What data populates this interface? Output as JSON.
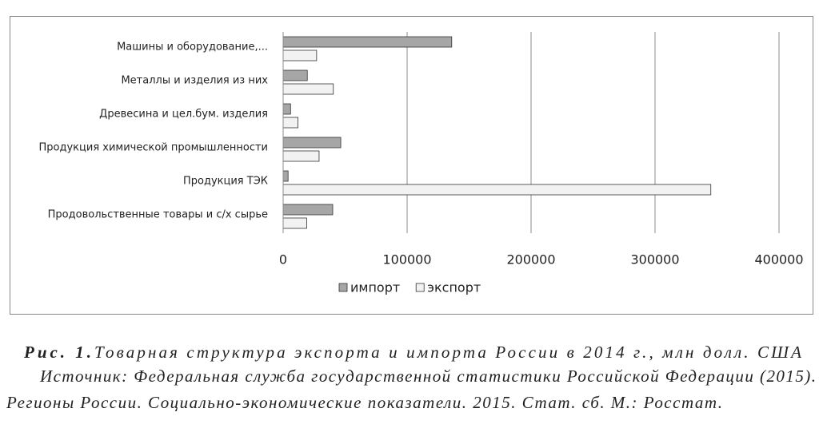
{
  "chart_data": {
    "type": "hbar",
    "categories": [
      "Машины и оборудование,...",
      "Металлы и изделия из них",
      "Древесина и цел.бум. изделия",
      "Продукция химической промышленности",
      "Продукция ТЭК",
      "Продовольственные товары и с/х сырье"
    ],
    "series": [
      {
        "name": "импорт",
        "color": "#a6a6a6",
        "values": [
          136000,
          19500,
          6000,
          46500,
          4000,
          40000
        ]
      },
      {
        "name": "экспорт",
        "color": "#f2f2f2",
        "values": [
          27000,
          40500,
          12000,
          29000,
          345000,
          19000
        ]
      }
    ],
    "xlim": [
      0,
      400000
    ],
    "xticks": [
      0,
      100000,
      200000,
      300000,
      400000
    ],
    "grid": true,
    "legend": "bottom"
  },
  "caption": {
    "label": "Рис. 1.",
    "text": "Товарная структура экспорта и импорта России в 2014 г., млн долл. США",
    "source": [
      "Источник: Федеральная служба государственной статистики Российской Федерации (2015).",
      "Регионы России. Социально-экономические показатели. 2015. Стат. сб. М.: Росстат."
    ]
  }
}
